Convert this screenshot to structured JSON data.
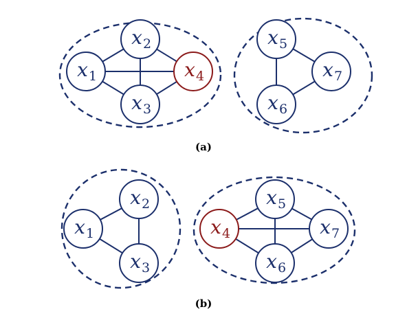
{
  "colors": {
    "edge": "#1b2f6b",
    "node_stroke": "#1b2f6b",
    "node_text": "#1b2f6b",
    "highlight": "#8b1a1a",
    "cluster": "#1b2f6b"
  },
  "panels": [
    {
      "id": "a",
      "caption": "(a)",
      "nodes": [
        {
          "id": "x1",
          "var": "x",
          "sub": "1",
          "highlight": false
        },
        {
          "id": "x2",
          "var": "x",
          "sub": "2",
          "highlight": false
        },
        {
          "id": "x3",
          "var": "x",
          "sub": "3",
          "highlight": false
        },
        {
          "id": "x4",
          "var": "x",
          "sub": "4",
          "highlight": true
        },
        {
          "id": "x5",
          "var": "x",
          "sub": "5",
          "highlight": false
        },
        {
          "id": "x6",
          "var": "x",
          "sub": "6",
          "highlight": false
        },
        {
          "id": "x7",
          "var": "x",
          "sub": "7",
          "highlight": false
        }
      ],
      "edges": [
        [
          "x1",
          "x2"
        ],
        [
          "x1",
          "x3"
        ],
        [
          "x1",
          "x4"
        ],
        [
          "x2",
          "x3"
        ],
        [
          "x2",
          "x4"
        ],
        [
          "x3",
          "x4"
        ],
        [
          "x5",
          "x6"
        ],
        [
          "x5",
          "x7"
        ],
        [
          "x6",
          "x7"
        ]
      ],
      "clusters": [
        [
          "x1",
          "x2",
          "x3",
          "x4"
        ],
        [
          "x5",
          "x6",
          "x7"
        ]
      ]
    },
    {
      "id": "b",
      "caption": "(b)",
      "nodes": [
        {
          "id": "x1",
          "var": "x",
          "sub": "1",
          "highlight": false
        },
        {
          "id": "x2",
          "var": "x",
          "sub": "2",
          "highlight": false
        },
        {
          "id": "x3",
          "var": "x",
          "sub": "3",
          "highlight": false
        },
        {
          "id": "x4",
          "var": "x",
          "sub": "4",
          "highlight": true
        },
        {
          "id": "x5",
          "var": "x",
          "sub": "5",
          "highlight": false
        },
        {
          "id": "x6",
          "var": "x",
          "sub": "6",
          "highlight": false
        },
        {
          "id": "x7",
          "var": "x",
          "sub": "7",
          "highlight": false
        }
      ],
      "edges": [
        [
          "x1",
          "x2"
        ],
        [
          "x1",
          "x3"
        ],
        [
          "x2",
          "x3"
        ],
        [
          "x4",
          "x5"
        ],
        [
          "x4",
          "x6"
        ],
        [
          "x4",
          "x7"
        ],
        [
          "x5",
          "x6"
        ],
        [
          "x5",
          "x7"
        ],
        [
          "x6",
          "x7"
        ]
      ],
      "clusters": [
        [
          "x1",
          "x2",
          "x3"
        ],
        [
          "x4",
          "x5",
          "x6",
          "x7"
        ]
      ]
    }
  ]
}
